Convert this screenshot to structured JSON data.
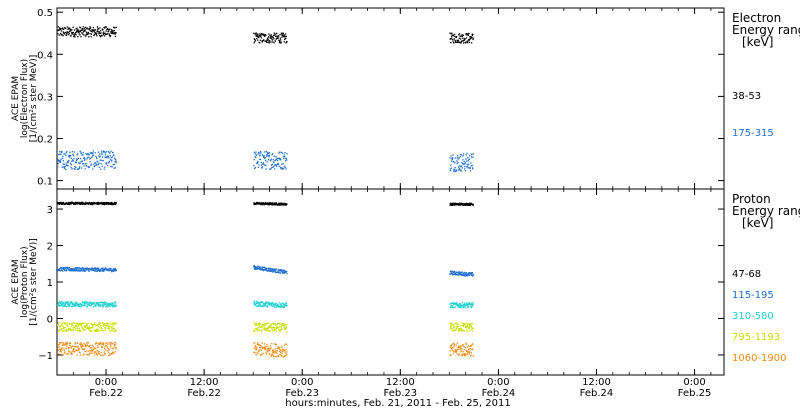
{
  "chart_data": [
    {
      "type": "scatter",
      "ylabel_lines": [
        "ACE EPAM",
        "log(Electron Flux)",
        "[1/(cm²s ster MeV)]"
      ],
      "ylim": [
        0.08,
        0.51
      ],
      "yticks": [
        0.1,
        0.2,
        0.3,
        0.4,
        0.5
      ],
      "ytick_labels": [
        "0.1",
        "0.2",
        "0.3",
        "0.4",
        "0.5"
      ],
      "legend": {
        "title_lines": [
          "Electron",
          "Energy ranges",
          "[keV]"
        ],
        "entries": [
          {
            "label": "38-53",
            "color": "#000000"
          },
          {
            "label": "175-315",
            "color": "#1f6fd0"
          }
        ]
      },
      "series": [
        {
          "color": "#000000",
          "mean": 0.445,
          "spread": 0.012,
          "segments": [
            [
              -2.3,
              0.05,
              0.455
            ],
            [
              0.75,
              0.92,
              0.44
            ],
            [
              1.75,
              1.87,
              0.44
            ]
          ]
        },
        {
          "color": "#1f6fd0",
          "mean": 0.148,
          "spread": 0.022,
          "segments": [
            [
              -2.3,
              0.05,
              0.15
            ],
            [
              0.75,
              0.92,
              0.15
            ],
            [
              1.75,
              1.87,
              0.145
            ]
          ]
        }
      ]
    },
    {
      "type": "scatter",
      "ylabel_lines": [
        "ACE EPAM",
        "log(Proton Flux)",
        "[1/(cm²s ster MeV)]"
      ],
      "ylim": [
        -1.55,
        3.55
      ],
      "yticks": [
        -1,
        0,
        1,
        2,
        3
      ],
      "ytick_labels": [
        "−1",
        "0",
        "1",
        "2",
        "3"
      ],
      "legend": {
        "title_lines": [
          "Proton",
          "Energy ranges",
          "[keV]"
        ],
        "entries": [
          {
            "label": "47-68",
            "color": "#000000"
          },
          {
            "label": "115-195",
            "color": "#1f6fd0"
          },
          {
            "label": "310-580",
            "color": "#22d0d0"
          },
          {
            "label": "795-1193",
            "color": "#c8e000"
          },
          {
            "label": "1060-1900",
            "color": "#f08a10"
          }
        ]
      },
      "series": [
        {
          "color": "#000000",
          "spread": 0.03,
          "segments": [
            [
              -2.3,
              0.05,
              3.2,
              3.17
            ],
            [
              0.75,
              0.92,
              3.17,
              3.15
            ],
            [
              1.75,
              1.87,
              3.15,
              3.15
            ]
          ]
        },
        {
          "color": "#1f6fd0",
          "spread": 0.05,
          "segments": [
            [
              -2.3,
              0.05,
              1.5,
              1.35
            ],
            [
              0.75,
              0.92,
              1.42,
              1.28
            ],
            [
              1.75,
              1.87,
              1.27,
              1.22
            ]
          ]
        },
        {
          "color": "#22d0d0",
          "spread": 0.07,
          "segments": [
            [
              -2.3,
              0.05,
              0.5,
              0.4
            ],
            [
              0.75,
              0.92,
              0.42,
              0.38
            ],
            [
              1.75,
              1.87,
              0.38,
              0.38
            ]
          ]
        },
        {
          "color": "#c8e000",
          "spread": 0.12,
          "segments": [
            [
              -2.3,
              0.05,
              -0.18,
              -0.22
            ],
            [
              0.75,
              0.92,
              -0.22,
              -0.24
            ],
            [
              1.75,
              1.87,
              -0.22,
              -0.22
            ]
          ]
        },
        {
          "color": "#f08a10",
          "spread": 0.18,
          "segments": [
            [
              -2.3,
              0.05,
              -0.75,
              -0.82
            ],
            [
              0.75,
              0.92,
              -0.82,
              -0.86
            ],
            [
              1.75,
              1.87,
              -0.84,
              -0.84
            ]
          ]
        }
      ]
    }
  ],
  "x_axis": {
    "xlim": [
      -0.25,
      3.15
    ],
    "ticks": [
      {
        "x": 0.0,
        "time": "0:00",
        "date": "Feb.22"
      },
      {
        "x": 0.5,
        "time": "12:00",
        "date": "Feb.22"
      },
      {
        "x": 1.0,
        "time": "0:00",
        "date": "Feb.23"
      },
      {
        "x": 1.5,
        "time": "12:00",
        "date": "Feb.23"
      },
      {
        "x": 2.0,
        "time": "0:00",
        "date": "Feb.24"
      },
      {
        "x": 2.5,
        "time": "12:00",
        "date": "Feb.24"
      },
      {
        "x": 3.0,
        "time": "0:00",
        "date": "Feb.25"
      }
    ],
    "title": "hours:minutes, Feb. 21, 2011 - Feb. 25, 2011"
  }
}
